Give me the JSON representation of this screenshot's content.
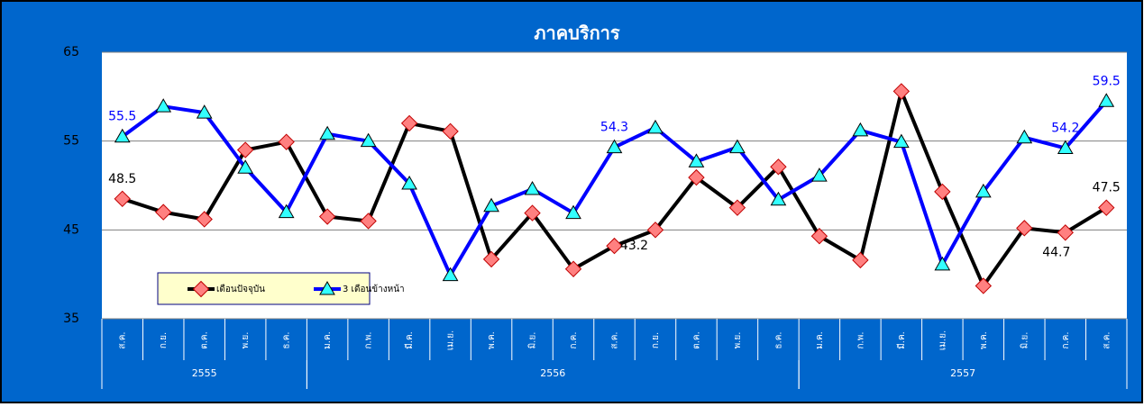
{
  "chart_data": {
    "type": "line",
    "title": "ภาคบริการ",
    "categories": [
      "ส.ค.",
      "ก.ย.",
      "ต.ค.",
      "พ.ย.",
      "ธ.ค.",
      "ม.ค.",
      "ก.พ.",
      "มี.ค.",
      "เม.ย.",
      "พ.ค.",
      "มิ.ย.",
      "ก.ค.",
      "ส.ค.",
      "ก.ย.",
      "ต.ค.",
      "พ.ย.",
      "ธ.ค.",
      "ม.ค.",
      "ก.พ.",
      "มี.ค.",
      "เม.ย.",
      "พ.ค.",
      "มิ.ย.",
      "ก.ค.",
      "ส.ค."
    ],
    "groups": [
      {
        "label": "2555",
        "span": [
          0,
          4
        ]
      },
      {
        "label": "2556",
        "span": [
          5,
          16
        ]
      },
      {
        "label": "2557",
        "span": [
          17,
          24
        ]
      }
    ],
    "series": [
      {
        "name": "เดือนปัจจุบัน",
        "color": "#000000",
        "marker_color": "#ff8080",
        "values": [
          48.5,
          47.0,
          46.2,
          54.0,
          54.9,
          46.5,
          46.0,
          57.0,
          56.1,
          41.7,
          46.9,
          40.6,
          43.2,
          45.0,
          50.9,
          47.5,
          52.1,
          44.3,
          41.6,
          60.6,
          49.3,
          38.7,
          45.2,
          44.7,
          47.5
        ],
        "value_labels": [
          "48.5",
          null,
          null,
          null,
          null,
          null,
          null,
          null,
          null,
          null,
          null,
          null,
          "43.2",
          null,
          null,
          null,
          null,
          null,
          null,
          null,
          null,
          null,
          null,
          "44.7",
          "47.5"
        ]
      },
      {
        "name": "3 เดือนข้างหน้า",
        "color": "#0000ff",
        "marker_color": "#33ffff",
        "values": [
          55.5,
          58.9,
          58.2,
          52.0,
          47.0,
          55.8,
          55.0,
          50.2,
          39.9,
          47.7,
          49.6,
          46.9,
          54.3,
          56.5,
          52.7,
          54.3,
          48.4,
          51.1,
          56.2,
          54.9,
          41.1,
          49.3,
          55.4,
          54.2,
          59.5
        ],
        "value_labels": [
          "55.5",
          null,
          null,
          null,
          null,
          null,
          null,
          null,
          null,
          null,
          null,
          null,
          "54.3",
          null,
          null,
          null,
          null,
          null,
          null,
          null,
          null,
          null,
          null,
          "54.2",
          "59.5"
        ]
      }
    ],
    "ylim": [
      35,
      65
    ],
    "yticks": [
      35,
      45,
      55,
      65
    ],
    "grid": true
  }
}
